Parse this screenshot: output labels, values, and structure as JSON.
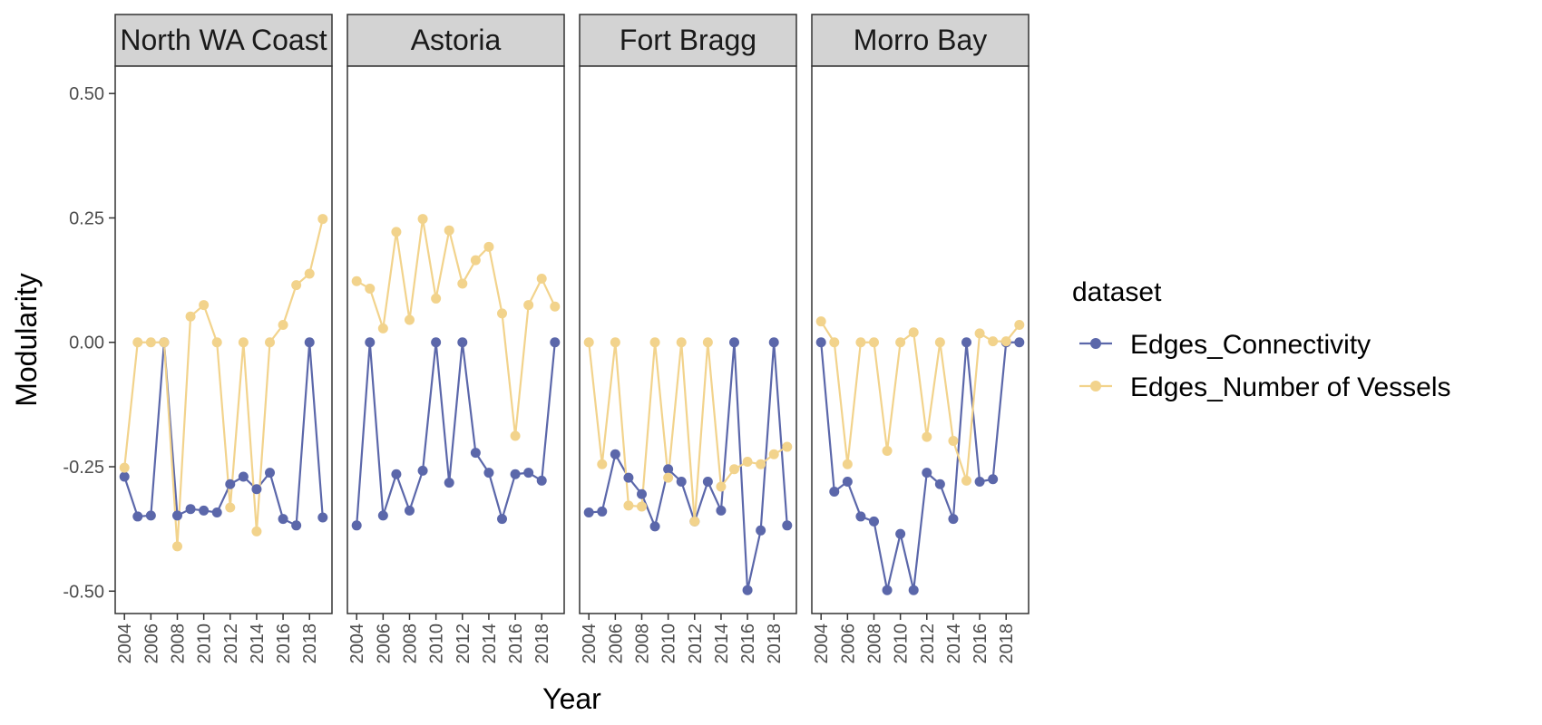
{
  "chart_data": {
    "type": "line",
    "facet_variable": "port",
    "facets": [
      "North WA Coast",
      "Astoria",
      "Fort Bragg",
      "Morro Bay"
    ],
    "xlabel": "Year",
    "ylabel": "Modularity",
    "xlim": [
      2003.3,
      2019.7
    ],
    "ylim": [
      -0.545,
      0.555
    ],
    "xticks": [
      2004,
      2006,
      2008,
      2010,
      2012,
      2014,
      2016,
      2018
    ],
    "yticks": [
      0.5,
      0.25,
      0.0,
      -0.25,
      -0.5
    ],
    "ytick_labels": [
      "0.50",
      "0.25",
      "0.00",
      "-0.25",
      "-0.50"
    ],
    "x": [
      2004,
      2005,
      2006,
      2007,
      2008,
      2009,
      2010,
      2011,
      2012,
      2013,
      2014,
      2015,
      2016,
      2017,
      2018,
      2019
    ],
    "legend": {
      "title": "dataset",
      "position": "right"
    },
    "grid": false,
    "series": [
      {
        "name": "Edges_Connectivity",
        "color": "#5B67AA",
        "panels": {
          "North WA Coast": [
            -0.27,
            -0.35,
            -0.348,
            0.0,
            -0.348,
            -0.335,
            -0.338,
            -0.342,
            -0.285,
            -0.27,
            -0.295,
            -0.262,
            -0.355,
            -0.368,
            0.0,
            -0.352
          ],
          "Astoria": [
            -0.368,
            0.0,
            -0.348,
            -0.265,
            -0.338,
            -0.258,
            0.0,
            -0.282,
            0.0,
            -0.222,
            -0.262,
            -0.355,
            -0.265,
            -0.262,
            -0.278,
            0.0
          ],
          "Fort Bragg": [
            -0.342,
            -0.34,
            -0.225,
            -0.272,
            -0.305,
            -0.37,
            -0.255,
            -0.28,
            -0.36,
            -0.28,
            -0.338,
            0.0,
            -0.498,
            -0.378,
            0.0,
            -0.368
          ],
          "Morro Bay": [
            0.0,
            -0.3,
            -0.28,
            -0.35,
            -0.36,
            -0.498,
            -0.385,
            -0.498,
            -0.262,
            -0.285,
            -0.355,
            0.0,
            -0.28,
            -0.275,
            0.0,
            0.0
          ]
        }
      },
      {
        "name": "Edges_Number of Vessels",
        "color": "#F2D38C",
        "panels": {
          "North WA Coast": [
            -0.252,
            0.0,
            0.0,
            0.0,
            -0.41,
            0.052,
            0.075,
            0.0,
            -0.332,
            0.0,
            -0.38,
            0.0,
            0.035,
            0.115,
            0.138,
            0.248
          ],
          "Astoria": [
            0.123,
            0.108,
            0.028,
            0.222,
            0.045,
            0.248,
            0.088,
            0.225,
            0.118,
            0.165,
            0.192,
            0.058,
            -0.188,
            0.075,
            0.128,
            0.072
          ],
          "Fort Bragg": [
            0.0,
            -0.245,
            0.0,
            -0.328,
            -0.33,
            0.0,
            -0.272,
            0.0,
            -0.36,
            0.0,
            -0.29,
            -0.255,
            -0.24,
            -0.245,
            -0.225,
            -0.21
          ],
          "Morro Bay": [
            0.042,
            0.0,
            -0.245,
            0.0,
            0.0,
            -0.218,
            0.0,
            0.02,
            -0.19,
            0.0,
            -0.198,
            -0.278,
            0.018,
            0.002,
            0.002,
            0.035
          ]
        }
      }
    ]
  }
}
